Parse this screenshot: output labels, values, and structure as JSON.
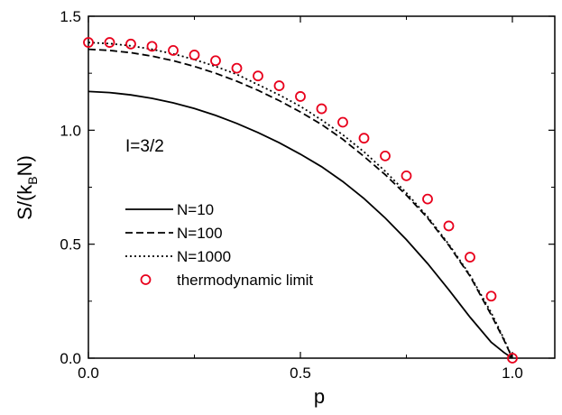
{
  "chart_data": {
    "type": "line",
    "xlabel": "p",
    "ylabel_main": "S/(k",
    "ylabel_sub": "B",
    "ylabel_tail": "N)",
    "xlim": [
      0.0,
      1.1
    ],
    "ylim": [
      0.0,
      1.5
    ],
    "xticks": [
      0.0,
      0.5,
      1.0
    ],
    "xtick_labels": [
      "0.0",
      "0.5",
      "1.0"
    ],
    "yticks": [
      0.0,
      0.5,
      1.0,
      1.5
    ],
    "ytick_labels": [
      "0.0",
      "0.5",
      "1.0",
      "1.5"
    ],
    "annotation": "I=3/2",
    "legend_position": "left",
    "grid": false,
    "series": [
      {
        "name": "N=10",
        "style": "solid",
        "color": "#000000",
        "x": [
          0.0,
          0.05,
          0.1,
          0.15,
          0.2,
          0.25,
          0.3,
          0.35,
          0.4,
          0.45,
          0.5,
          0.55,
          0.6,
          0.65,
          0.7,
          0.75,
          0.8,
          0.85,
          0.9,
          0.95,
          0.98,
          1.0
        ],
        "y": [
          1.17,
          1.165,
          1.155,
          1.14,
          1.12,
          1.095,
          1.065,
          1.03,
          0.99,
          0.945,
          0.895,
          0.84,
          0.775,
          0.7,
          0.615,
          0.52,
          0.415,
          0.3,
          0.18,
          0.07,
          0.025,
          0.0
        ]
      },
      {
        "name": "N=100",
        "style": "dashed",
        "color": "#000000",
        "x": [
          0.0,
          0.05,
          0.1,
          0.15,
          0.2,
          0.25,
          0.3,
          0.35,
          0.4,
          0.45,
          0.5,
          0.55,
          0.6,
          0.65,
          0.7,
          0.75,
          0.8,
          0.85,
          0.9,
          0.95,
          0.98,
          1.0
        ],
        "y": [
          1.355,
          1.35,
          1.34,
          1.325,
          1.305,
          1.28,
          1.25,
          1.215,
          1.175,
          1.13,
          1.08,
          1.025,
          0.96,
          0.885,
          0.805,
          0.715,
          0.615,
          0.495,
          0.36,
          0.19,
          0.08,
          0.0
        ]
      },
      {
        "name": "N=1000",
        "style": "dotted",
        "color": "#000000",
        "x": [
          0.0,
          0.05,
          0.1,
          0.15,
          0.2,
          0.25,
          0.3,
          0.35,
          0.4,
          0.45,
          0.5,
          0.55,
          0.6,
          0.65,
          0.7,
          0.75,
          0.8,
          0.85,
          0.9,
          0.95,
          0.98,
          1.0
        ],
        "y": [
          1.385,
          1.38,
          1.37,
          1.355,
          1.335,
          1.31,
          1.28,
          1.245,
          1.2,
          1.155,
          1.105,
          1.045,
          0.98,
          0.905,
          0.82,
          0.725,
          0.62,
          0.5,
          0.365,
          0.2,
          0.085,
          0.0
        ]
      },
      {
        "name": "thermodynamic limit",
        "style": "markers",
        "color": "#e8001c",
        "x": [
          0.0,
          0.05,
          0.1,
          0.15,
          0.2,
          0.25,
          0.3,
          0.35,
          0.4,
          0.45,
          0.5,
          0.55,
          0.6,
          0.65,
          0.7,
          0.75,
          0.8,
          0.85,
          0.9,
          0.95,
          1.0
        ],
        "y": [
          1.385,
          1.385,
          1.378,
          1.368,
          1.35,
          1.33,
          1.305,
          1.272,
          1.238,
          1.195,
          1.148,
          1.094,
          1.035,
          0.965,
          0.887,
          0.8,
          0.698,
          0.58,
          0.443,
          0.272,
          0.0
        ]
      }
    ]
  }
}
